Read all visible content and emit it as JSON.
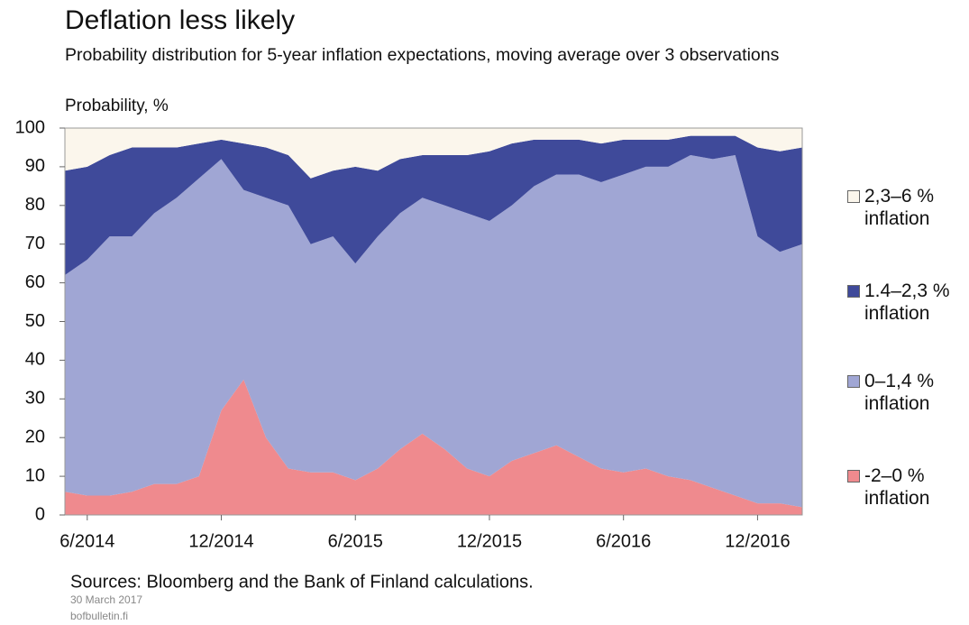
{
  "chart_data": {
    "type": "stacked_area",
    "title": "Deflation less likely",
    "subtitle": "Probability distribution for 5-year inflation expectations, moving average over 3 observations",
    "y_label": "Probability, %",
    "source": "Sources: Bloomberg and the Bank of Finland calculations.",
    "date": "30 March 2017",
    "site": "bofbulletin.fi",
    "categories": [
      null,
      "6/2014",
      null,
      null,
      null,
      null,
      null,
      "12/2014",
      null,
      null,
      null,
      null,
      null,
      "6/2015",
      null,
      null,
      null,
      null,
      null,
      "12/2015",
      null,
      null,
      null,
      null,
      null,
      "6/2016",
      null,
      null,
      null,
      null,
      null,
      "12/2016",
      null,
      null
    ],
    "series": [
      {
        "name": "-2–0 % inflation",
        "color": "#ef8a8e",
        "values": [
          6,
          5,
          5,
          6,
          8,
          8,
          10,
          27,
          35,
          20,
          12,
          11,
          11,
          9,
          12,
          17,
          21,
          17,
          12,
          10,
          14,
          16,
          18,
          15,
          12,
          11,
          12,
          10,
          9,
          7,
          5,
          3,
          3,
          2
        ]
      },
      {
        "name": "0–1,4 % inflation",
        "color": "#a0a6d4",
        "values": [
          56,
          61,
          67,
          66,
          70,
          74,
          77,
          65,
          49,
          62,
          68,
          59,
          61,
          56,
          60,
          61,
          61,
          63,
          66,
          66,
          66,
          69,
          70,
          73,
          74,
          77,
          78,
          80,
          84,
          85,
          88,
          69,
          65,
          68
        ]
      },
      {
        "name": "1.4–2,3 % inflation",
        "color": "#3f4a9a",
        "values": [
          27,
          24,
          21,
          23,
          17,
          13,
          9,
          5,
          12,
          13,
          13,
          17,
          17,
          25,
          17,
          14,
          11,
          13,
          15,
          18,
          16,
          12,
          9,
          9,
          10,
          9,
          7,
          7,
          5,
          6,
          5,
          23,
          26,
          25
        ]
      },
      {
        "name": "2,3–6 % inflation",
        "color": "#fbf6ec",
        "values": [
          11,
          10,
          7,
          5,
          5,
          5,
          4,
          3,
          4,
          5,
          7,
          13,
          11,
          10,
          11,
          8,
          7,
          7,
          7,
          6,
          4,
          3,
          3,
          3,
          4,
          3,
          3,
          3,
          2,
          2,
          2,
          5,
          6,
          5
        ]
      }
    ],
    "ylim": [
      0,
      100
    ],
    "yticks": [
      0,
      10,
      20,
      30,
      40,
      50,
      60,
      70,
      80,
      90,
      100
    ]
  }
}
